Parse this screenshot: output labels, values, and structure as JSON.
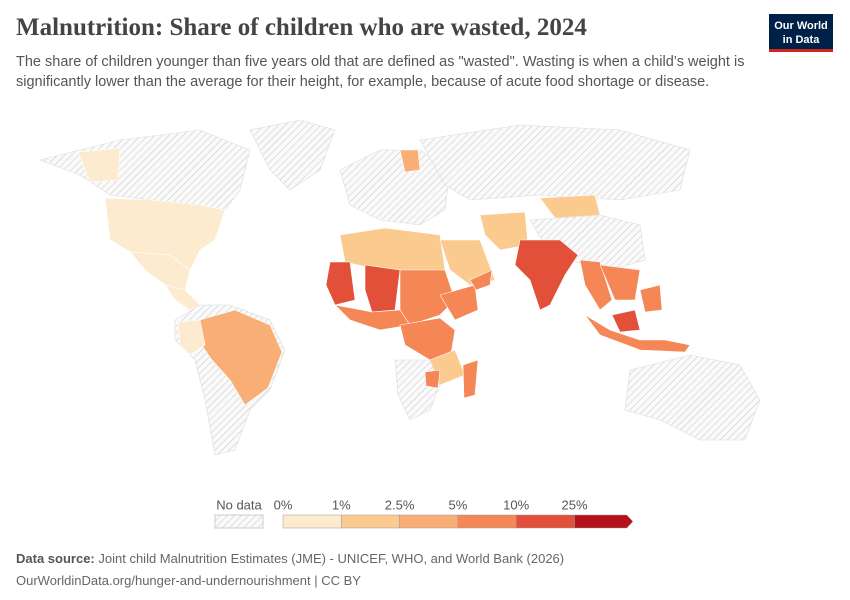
{
  "header": {
    "title": "Malnutrition: Share of children who are wasted, 2024",
    "subtitle": "The share of children younger than five years old that are defined as \"wasted\". Wasting is when a child’s weight is significantly lower than the average for their height, for example, because of acute food shortage or disease.",
    "logo": [
      "Our World",
      "in Data"
    ]
  },
  "legend": {
    "no_data": "No data",
    "bins": [
      "0%",
      "1%",
      "2.5%",
      "5%",
      "10%",
      "25%"
    ],
    "colors": [
      "#fdebcf",
      "#fbca8f",
      "#f8ae74",
      "#f58656",
      "#e2503a",
      "#b3111b"
    ]
  },
  "footer": {
    "source_label": "Data source:",
    "source": "Joint child Malnutrition Estimates (JME) - UNICEF, WHO, and World Bank (2026)",
    "url": "OurWorldinData.org/hunger-and-undernourishment | CC BY"
  }
}
